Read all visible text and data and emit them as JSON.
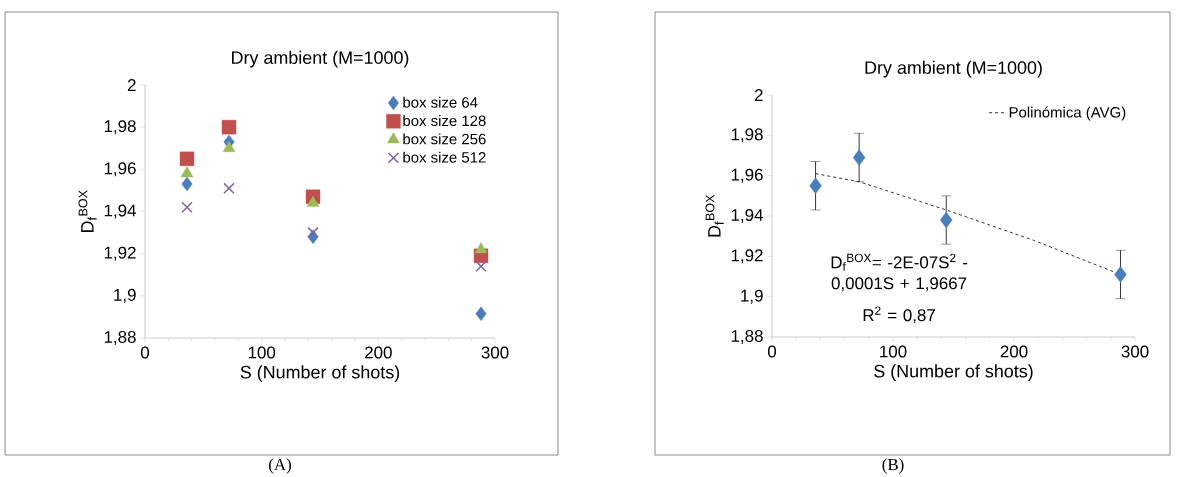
{
  "chart_data": [
    {
      "type": "scatter",
      "title": "Dry ambient (M=1000)",
      "xlabel": "S (Number of shots)",
      "ylabel": "D$_{f}$$^{BOX}$",
      "x": [
        36,
        72,
        144,
        288
      ],
      "series": [
        {
          "name": "box size 64",
          "color": "#4a7ebb",
          "marker": "diamond",
          "values": [
            1.953,
            1.973,
            1.928,
            1.8915
          ]
        },
        {
          "name": "box size 128",
          "color": "#c0504d",
          "marker": "square",
          "values": [
            1.965,
            1.98,
            1.947,
            1.919
          ]
        },
        {
          "name": "box size 256",
          "color": "#9bbb59",
          "marker": "triangle",
          "values": [
            1.958,
            1.97,
            1.944,
            1.922
          ]
        },
        {
          "name": "box size 512",
          "color": "#8064a2",
          "marker": "cross",
          "values": [
            1.942,
            1.951,
            1.93,
            1.914
          ]
        }
      ],
      "xlim": [
        0,
        300
      ],
      "xticks": [
        0,
        100,
        200,
        300
      ],
      "ylim": [
        1.88,
        2
      ],
      "yticks": [
        {
          "value": 1.88,
          "label": "1,88"
        },
        {
          "value": 1.9,
          "label": "1,9"
        },
        {
          "value": 1.92,
          "label": "1,92"
        },
        {
          "value": 1.94,
          "label": "1,94"
        },
        {
          "value": 1.96,
          "label": "1,96"
        },
        {
          "value": 1.98,
          "label": "1,98"
        },
        2
      ],
      "legend": "top right",
      "grid": false,
      "annotations": [
        "(A)"
      ]
    },
    {
      "type": "scatter",
      "title": "Dry ambient (M=1000)",
      "xlabel": "S (Number of shots)",
      "ylabel": "D$_{f}$$^{BOX}$",
      "x": [
        36,
        72,
        144,
        288
      ],
      "series": [
        {
          "color": "#4a7ebb",
          "marker": "diamond",
          "values": [
            1.955,
            1.969,
            1.938,
            1.911
          ],
          "errors": [
            0.012,
            0.012,
            0.012,
            0.012
          ]
        },
        {
          "type": "line",
          "name": "Polinómica (AVG)",
          "color": "#000000",
          "line_style": "dashed",
          "marker": "none",
          "x": [
            36,
            72,
            144,
            216,
            288
          ],
          "values": [
            1.961,
            1.957,
            1.943,
            1.928,
            1.911
          ]
        }
      ],
      "xlim": [
        0,
        300
      ],
      "xticks": [
        0,
        100,
        200,
        300
      ],
      "ylim": [
        1.88,
        2
      ],
      "yticks": [
        {
          "value": 1.88,
          "label": "1,88"
        },
        {
          "value": 1.9,
          "label": "1,9"
        },
        {
          "value": 1.92,
          "label": "1,92"
        },
        {
          "value": 1.94,
          "label": "1,94"
        },
        {
          "value": 1.96,
          "label": "1,96"
        },
        {
          "value": 1.98,
          "label": "1,98"
        },
        2
      ],
      "legend": "top right",
      "grid": false,
      "annotations": [
        "D$_{f}$$^{BOX}$= -2E-07S$^{2}$ - 0,0001S + 1,9667",
        "R$^{2}$ = 0,87",
        "(B)"
      ]
    }
  ]
}
